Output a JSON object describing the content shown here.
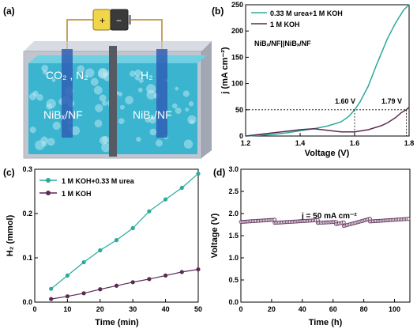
{
  "panels": {
    "a": {
      "letter": "(a)",
      "battery": {
        "plus": "+",
        "minus": "−"
      },
      "gases_left": "CO₂ , N₂",
      "gas_right": "H₂",
      "electrode_left": "NiBₓ/NF",
      "electrode_right": "NiBₓ/NF",
      "colors": {
        "electrolyte": "#3ab4cf",
        "electrode": "#2f5fb5",
        "tank": "#8d96a8",
        "membrane": "#555a63",
        "battery_yellow": "#f2d64a"
      }
    },
    "b": {
      "letter": "(b)",
      "system_label": "NiBₓ/NF||NiBₓ/NF",
      "annotation_1": "1.60 V",
      "annotation_2": "1.79 V",
      "ref_current_mA_cm2": 50,
      "colors": {
        "urea": "#2aaa9a",
        "koh": "#5a2a52"
      }
    },
    "c": {
      "letter": "(c)",
      "colors": {
        "urea": "#2aaa9a",
        "koh": "#5a2a52"
      }
    },
    "d": {
      "letter": "(d)",
      "annotation": "j = 50 mA cm⁻²",
      "colors": {
        "marker_edge": "#5a2a52",
        "marker_fill": "#f0e8f0"
      }
    }
  },
  "chart_data": [
    {
      "panel": "b",
      "type": "line",
      "xlabel": "Voltage (V)",
      "ylabel": "j (mA cm⁻²)",
      "xlim": [
        1.2,
        1.8
      ],
      "ylim": [
        0,
        250
      ],
      "xticks": [
        "1.2",
        "1.4",
        "1.6",
        "1.8"
      ],
      "yticks": [
        "0",
        "50",
        "100",
        "150",
        "200",
        "250"
      ],
      "legend_position": "top-left",
      "series": [
        {
          "name": "0.33 M urea+1 M KOH",
          "x": [
            1.2,
            1.25,
            1.3,
            1.35,
            1.4,
            1.45,
            1.5,
            1.55,
            1.58,
            1.6,
            1.62,
            1.65,
            1.68,
            1.7,
            1.72,
            1.75,
            1.78,
            1.8
          ],
          "y": [
            0,
            1,
            3,
            6,
            10,
            14,
            19,
            27,
            38,
            50,
            65,
            95,
            135,
            160,
            185,
            215,
            240,
            250
          ]
        },
        {
          "name": "1 M KOH",
          "x": [
            1.2,
            1.25,
            1.3,
            1.35,
            1.4,
            1.45,
            1.5,
            1.55,
            1.6,
            1.65,
            1.7,
            1.72,
            1.75,
            1.77,
            1.79,
            1.8
          ],
          "y": [
            0,
            3,
            6,
            9,
            12,
            14,
            11,
            8,
            8,
            12,
            20,
            25,
            35,
            44,
            50,
            55
          ]
        }
      ]
    },
    {
      "panel": "c",
      "type": "scatter",
      "xlabel": "Time (min)",
      "ylabel": "H₂ (mmol)",
      "xlim": [
        0,
        50
      ],
      "ylim": [
        0,
        0.3
      ],
      "xticks": [
        "0",
        "10",
        "20",
        "30",
        "40",
        "50"
      ],
      "yticks": [
        "0.0",
        "0.1",
        "0.2",
        "0.3"
      ],
      "legend_position": "top-left",
      "series": [
        {
          "name": "1 M KOH+0.33 M urea",
          "x": [
            5,
            10,
            15,
            20,
            25,
            30,
            35,
            40,
            45,
            50
          ],
          "y": [
            0.03,
            0.06,
            0.09,
            0.117,
            0.14,
            0.167,
            0.205,
            0.232,
            0.258,
            0.29
          ]
        },
        {
          "name": "1 M KOH",
          "x": [
            5,
            10,
            15,
            20,
            25,
            30,
            35,
            40,
            45,
            50
          ],
          "y": [
            0.007,
            0.013,
            0.02,
            0.029,
            0.037,
            0.045,
            0.052,
            0.06,
            0.068,
            0.074
          ]
        }
      ]
    },
    {
      "panel": "d",
      "type": "scatter",
      "xlabel": "Time (h)",
      "ylabel": "Voltage (V)",
      "xlim": [
        0,
        110
      ],
      "ylim": [
        0,
        3.0
      ],
      "xticks": [
        "0",
        "20",
        "40",
        "60",
        "80",
        "100"
      ],
      "yticks": [
        "0.0",
        "0.5",
        "1.0",
        "1.5",
        "2.0",
        "2.5",
        "3.0"
      ],
      "segments": [
        {
          "x": [
            0,
            22
          ],
          "y": [
            1.81,
            1.86
          ]
        },
        {
          "x": [
            22,
            50
          ],
          "y": [
            1.79,
            1.85
          ]
        },
        {
          "x": [
            50,
            62
          ],
          "y": [
            1.79,
            1.81
          ]
        },
        {
          "x": [
            62,
            67
          ],
          "y": [
            1.76,
            1.8
          ]
        },
        {
          "x": [
            67,
            84
          ],
          "y": [
            1.72,
            1.88
          ]
        },
        {
          "x": [
            84,
            109
          ],
          "y": [
            1.82,
            1.88
          ]
        }
      ]
    }
  ]
}
